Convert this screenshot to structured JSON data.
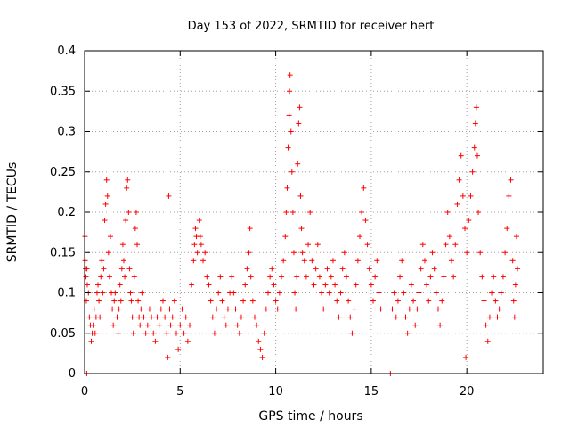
{
  "chart_data": {
    "type": "scatter",
    "title": "Day 153 of 2022, SRMTID for receiver hert",
    "xlabel": "GPS time / hours",
    "ylabel": "SRMTID / TECUs",
    "xlim": [
      0,
      24
    ],
    "ylim": [
      0,
      0.4
    ],
    "xticks": [
      0,
      5,
      10,
      15,
      20
    ],
    "xtick_labels": [
      "0",
      "5",
      "10",
      "15",
      "20"
    ],
    "yticks": [
      0,
      0.05,
      0.1,
      0.15,
      0.2,
      0.25,
      0.3,
      0.35,
      0.4
    ],
    "ytick_labels": [
      "0",
      "0.05",
      "0.1",
      "0.15",
      "0.2",
      "0.25",
      "0.3",
      "0.35",
      "0.4"
    ],
    "grid": true,
    "marker": "+",
    "marker_color": "#ff0000",
    "series": [
      {
        "name": "SRMTID",
        "points": [
          [
            0.02,
            0.17
          ],
          [
            0.03,
            0.14
          ],
          [
            0.05,
            0.13
          ],
          [
            0.07,
            0.12
          ],
          [
            0.09,
            0.09
          ],
          [
            0.11,
            0.0
          ],
          [
            0.12,
            0.13
          ],
          [
            0.14,
            0.11
          ],
          [
            0.2,
            0.1
          ],
          [
            0.25,
            0.07
          ],
          [
            0.3,
            0.06
          ],
          [
            0.35,
            0.04
          ],
          [
            0.4,
            0.05
          ],
          [
            0.45,
            0.06
          ],
          [
            0.5,
            0.08
          ],
          [
            0.55,
            0.05
          ],
          [
            0.6,
            0.07
          ],
          [
            0.65,
            0.1
          ],
          [
            0.7,
            0.11
          ],
          [
            0.75,
            0.09
          ],
          [
            0.8,
            0.07
          ],
          [
            0.85,
            0.12
          ],
          [
            0.9,
            0.14
          ],
          [
            0.95,
            0.1
          ],
          [
            1.0,
            0.13
          ],
          [
            1.05,
            0.19
          ],
          [
            1.1,
            0.21
          ],
          [
            1.15,
            0.24
          ],
          [
            1.2,
            0.22
          ],
          [
            1.25,
            0.15
          ],
          [
            1.3,
            0.12
          ],
          [
            1.35,
            0.17
          ],
          [
            1.4,
            0.1
          ],
          [
            1.45,
            0.08
          ],
          [
            1.5,
            0.06
          ],
          [
            1.55,
            0.09
          ],
          [
            1.6,
            0.1
          ],
          [
            1.7,
            0.07
          ],
          [
            1.75,
            0.05
          ],
          [
            1.8,
            0.08
          ],
          [
            1.85,
            0.11
          ],
          [
            1.9,
            0.09
          ],
          [
            1.95,
            0.13
          ],
          [
            2.0,
            0.16
          ],
          [
            2.05,
            0.14
          ],
          [
            2.1,
            0.12
          ],
          [
            2.15,
            0.19
          ],
          [
            2.2,
            0.23
          ],
          [
            2.25,
            0.24
          ],
          [
            2.3,
            0.2
          ],
          [
            2.35,
            0.13
          ],
          [
            2.4,
            0.1
          ],
          [
            2.45,
            0.09
          ],
          [
            2.5,
            0.07
          ],
          [
            2.55,
            0.05
          ],
          [
            2.6,
            0.12
          ],
          [
            2.65,
            0.18
          ],
          [
            2.7,
            0.2
          ],
          [
            2.75,
            0.16
          ],
          [
            2.8,
            0.09
          ],
          [
            2.85,
            0.07
          ],
          [
            2.9,
            0.06
          ],
          [
            2.95,
            0.08
          ],
          [
            3.0,
            0.1
          ],
          [
            3.1,
            0.07
          ],
          [
            3.2,
            0.05
          ],
          [
            3.3,
            0.06
          ],
          [
            3.4,
            0.08
          ],
          [
            3.5,
            0.07
          ],
          [
            3.6,
            0.05
          ],
          [
            3.7,
            0.04
          ],
          [
            3.8,
            0.07
          ],
          [
            3.9,
            0.06
          ],
          [
            4.0,
            0.08
          ],
          [
            4.1,
            0.09
          ],
          [
            4.2,
            0.07
          ],
          [
            4.3,
            0.05
          ],
          [
            4.35,
            0.02
          ],
          [
            4.4,
            0.22
          ],
          [
            4.45,
            0.08
          ],
          [
            4.5,
            0.06
          ],
          [
            4.6,
            0.07
          ],
          [
            4.7,
            0.09
          ],
          [
            4.8,
            0.05
          ],
          [
            4.9,
            0.03
          ],
          [
            5.0,
            0.06
          ],
          [
            5.1,
            0.08
          ],
          [
            5.2,
            0.05
          ],
          [
            5.3,
            0.07
          ],
          [
            5.4,
            0.04
          ],
          [
            5.5,
            0.06
          ],
          [
            5.6,
            0.11
          ],
          [
            5.7,
            0.14
          ],
          [
            5.75,
            0.16
          ],
          [
            5.8,
            0.18
          ],
          [
            5.85,
            0.17
          ],
          [
            5.9,
            0.15
          ],
          [
            6.0,
            0.19
          ],
          [
            6.05,
            0.17
          ],
          [
            6.1,
            0.16
          ],
          [
            6.2,
            0.14
          ],
          [
            6.3,
            0.15
          ],
          [
            6.4,
            0.12
          ],
          [
            6.5,
            0.11
          ],
          [
            6.6,
            0.09
          ],
          [
            6.7,
            0.07
          ],
          [
            6.8,
            0.05
          ],
          [
            6.9,
            0.08
          ],
          [
            7.0,
            0.1
          ],
          [
            7.1,
            0.12
          ],
          [
            7.2,
            0.09
          ],
          [
            7.3,
            0.07
          ],
          [
            7.4,
            0.06
          ],
          [
            7.5,
            0.08
          ],
          [
            7.6,
            0.1
          ],
          [
            7.7,
            0.12
          ],
          [
            7.8,
            0.1
          ],
          [
            7.9,
            0.08
          ],
          [
            8.0,
            0.06
          ],
          [
            8.1,
            0.05
          ],
          [
            8.2,
            0.07
          ],
          [
            8.3,
            0.09
          ],
          [
            8.4,
            0.11
          ],
          [
            8.5,
            0.13
          ],
          [
            8.6,
            0.15
          ],
          [
            8.65,
            0.18
          ],
          [
            8.7,
            0.12
          ],
          [
            8.8,
            0.09
          ],
          [
            8.9,
            0.07
          ],
          [
            9.0,
            0.06
          ],
          [
            9.1,
            0.04
          ],
          [
            9.2,
            0.03
          ],
          [
            9.3,
            0.02
          ],
          [
            9.4,
            0.05
          ],
          [
            9.5,
            0.08
          ],
          [
            9.6,
            0.1
          ],
          [
            9.7,
            0.12
          ],
          [
            9.8,
            0.13
          ],
          [
            9.9,
            0.11
          ],
          [
            10.0,
            0.09
          ],
          [
            10.1,
            0.08
          ],
          [
            10.2,
            0.1
          ],
          [
            10.3,
            0.12
          ],
          [
            10.4,
            0.14
          ],
          [
            10.5,
            0.17
          ],
          [
            10.55,
            0.2
          ],
          [
            10.6,
            0.23
          ],
          [
            10.65,
            0.28
          ],
          [
            10.7,
            0.32
          ],
          [
            10.72,
            0.35
          ],
          [
            10.75,
            0.37
          ],
          [
            10.8,
            0.3
          ],
          [
            10.85,
            0.25
          ],
          [
            10.9,
            0.2
          ],
          [
            10.95,
            0.15
          ],
          [
            11.0,
            0.1
          ],
          [
            11.05,
            0.08
          ],
          [
            11.1,
            0.12
          ],
          [
            11.15,
            0.26
          ],
          [
            11.2,
            0.31
          ],
          [
            11.25,
            0.33
          ],
          [
            11.3,
            0.22
          ],
          [
            11.35,
            0.18
          ],
          [
            11.4,
            0.15
          ],
          [
            11.5,
            0.14
          ],
          [
            11.6,
            0.12
          ],
          [
            11.7,
            0.16
          ],
          [
            11.8,
            0.2
          ],
          [
            11.9,
            0.14
          ],
          [
            12.0,
            0.11
          ],
          [
            12.1,
            0.13
          ],
          [
            12.2,
            0.16
          ],
          [
            12.3,
            0.12
          ],
          [
            12.4,
            0.1
          ],
          [
            12.5,
            0.08
          ],
          [
            12.6,
            0.11
          ],
          [
            12.7,
            0.13
          ],
          [
            12.8,
            0.1
          ],
          [
            12.9,
            0.12
          ],
          [
            13.0,
            0.14
          ],
          [
            13.1,
            0.11
          ],
          [
            13.2,
            0.09
          ],
          [
            13.3,
            0.07
          ],
          [
            13.4,
            0.1
          ],
          [
            13.5,
            0.13
          ],
          [
            13.6,
            0.15
          ],
          [
            13.7,
            0.12
          ],
          [
            13.8,
            0.09
          ],
          [
            13.9,
            0.07
          ],
          [
            14.0,
            0.05
          ],
          [
            14.1,
            0.08
          ],
          [
            14.2,
            0.11
          ],
          [
            14.3,
            0.14
          ],
          [
            14.4,
            0.17
          ],
          [
            14.5,
            0.2
          ],
          [
            14.6,
            0.23
          ],
          [
            14.7,
            0.19
          ],
          [
            14.8,
            0.16
          ],
          [
            14.9,
            0.13
          ],
          [
            15.0,
            0.11
          ],
          [
            15.1,
            0.09
          ],
          [
            15.2,
            0.12
          ],
          [
            15.3,
            0.14
          ],
          [
            15.4,
            0.1
          ],
          [
            15.5,
            0.08
          ],
          [
            16.0,
            0.0
          ],
          [
            16.1,
            0.08
          ],
          [
            16.2,
            0.1
          ],
          [
            16.3,
            0.07
          ],
          [
            16.4,
            0.09
          ],
          [
            16.5,
            0.12
          ],
          [
            16.6,
            0.14
          ],
          [
            16.7,
            0.1
          ],
          [
            16.8,
            0.07
          ],
          [
            16.9,
            0.05
          ],
          [
            17.0,
            0.08
          ],
          [
            17.1,
            0.11
          ],
          [
            17.2,
            0.09
          ],
          [
            17.3,
            0.06
          ],
          [
            17.4,
            0.08
          ],
          [
            17.5,
            0.1
          ],
          [
            17.6,
            0.13
          ],
          [
            17.7,
            0.16
          ],
          [
            17.8,
            0.14
          ],
          [
            17.9,
            0.11
          ],
          [
            18.0,
            0.09
          ],
          [
            18.1,
            0.12
          ],
          [
            18.2,
            0.15
          ],
          [
            18.3,
            0.13
          ],
          [
            18.4,
            0.1
          ],
          [
            18.5,
            0.08
          ],
          [
            18.6,
            0.06
          ],
          [
            18.7,
            0.09
          ],
          [
            18.8,
            0.12
          ],
          [
            18.9,
            0.16
          ],
          [
            19.0,
            0.2
          ],
          [
            19.1,
            0.17
          ],
          [
            19.2,
            0.14
          ],
          [
            19.3,
            0.12
          ],
          [
            19.4,
            0.16
          ],
          [
            19.5,
            0.21
          ],
          [
            19.6,
            0.24
          ],
          [
            19.7,
            0.27
          ],
          [
            19.8,
            0.22
          ],
          [
            19.9,
            0.18
          ],
          [
            19.95,
            0.02
          ],
          [
            20.0,
            0.15
          ],
          [
            20.1,
            0.19
          ],
          [
            20.2,
            0.22
          ],
          [
            20.3,
            0.25
          ],
          [
            20.4,
            0.28
          ],
          [
            20.45,
            0.31
          ],
          [
            20.5,
            0.33
          ],
          [
            20.55,
            0.27
          ],
          [
            20.6,
            0.2
          ],
          [
            20.7,
            0.15
          ],
          [
            20.8,
            0.12
          ],
          [
            20.9,
            0.09
          ],
          [
            21.0,
            0.06
          ],
          [
            21.1,
            0.04
          ],
          [
            21.2,
            0.07
          ],
          [
            21.3,
            0.1
          ],
          [
            21.4,
            0.12
          ],
          [
            21.5,
            0.09
          ],
          [
            21.6,
            0.07
          ],
          [
            21.7,
            0.08
          ],
          [
            21.8,
            0.1
          ],
          [
            21.9,
            0.12
          ],
          [
            22.0,
            0.15
          ],
          [
            22.1,
            0.18
          ],
          [
            22.2,
            0.22
          ],
          [
            22.3,
            0.24
          ],
          [
            22.4,
            0.14
          ],
          [
            22.45,
            0.09
          ],
          [
            22.5,
            0.07
          ],
          [
            22.55,
            0.11
          ],
          [
            22.6,
            0.17
          ],
          [
            22.65,
            0.13
          ]
        ]
      }
    ]
  }
}
